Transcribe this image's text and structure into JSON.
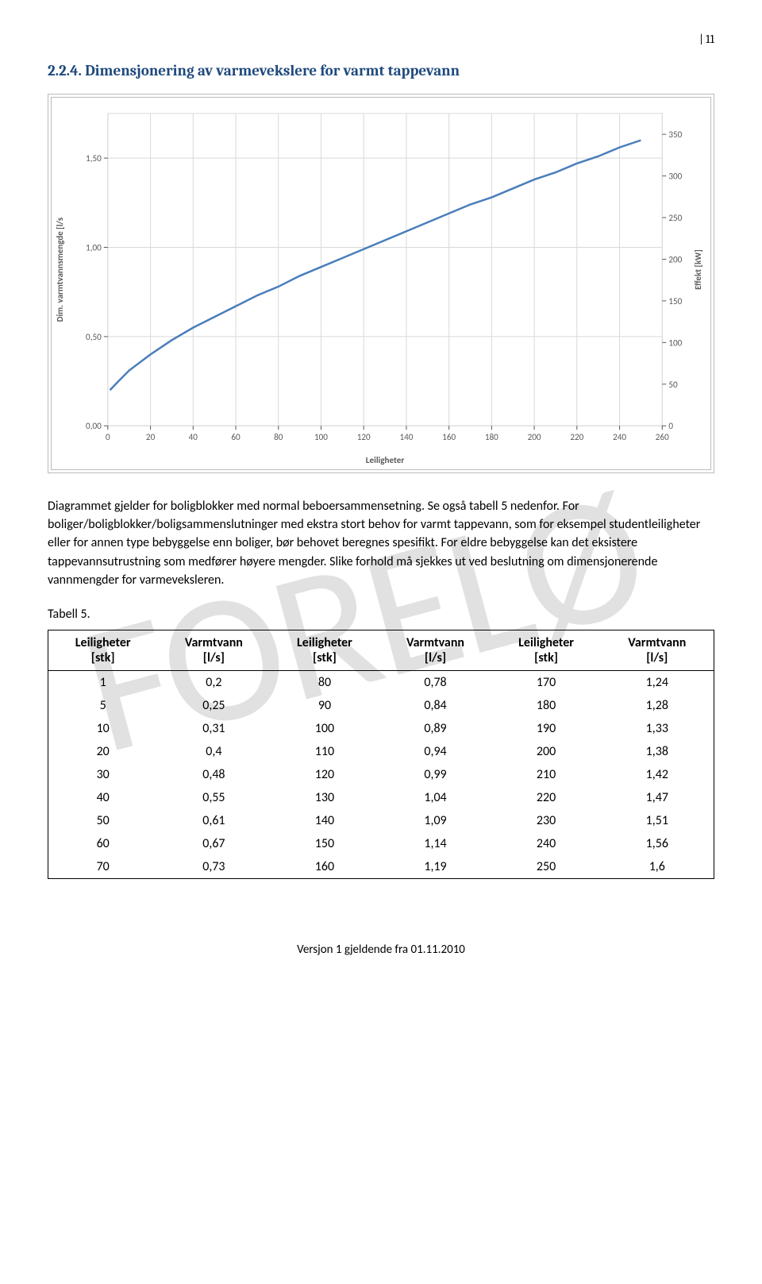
{
  "page_number": "| 11",
  "heading": "2.2.4. Dimensjonering av varmevekslere for varmt tappevann",
  "watermark": "FORELØ",
  "chart": {
    "type": "line",
    "x_axis_label": "Leiligheter",
    "y_left_label": "Dim. varmtvannsmengde [l/s",
    "y_right_label": "Effekt [kW]",
    "line_color": "#4a7ebb",
    "line_width": 2.5,
    "grid_color": "#d9d9d9",
    "background": "#ffffff",
    "tick_fontsize": 11,
    "tick_color": "#595959",
    "label_fontsize": 11,
    "x_ticks": [
      0,
      20,
      40,
      60,
      80,
      100,
      120,
      140,
      160,
      180,
      200,
      220,
      240,
      260
    ],
    "y_left_ticks": [
      "0,00",
      "0,50",
      "1,00",
      "1,50"
    ],
    "y_left_values": [
      0,
      0.5,
      1.0,
      1.5
    ],
    "y_right_ticks": [
      0,
      50,
      100,
      150,
      200,
      250,
      300,
      350
    ],
    "xlim": [
      0,
      260
    ],
    "ylim_left": [
      0,
      1.75
    ],
    "ylim_right": [
      0,
      375
    ],
    "data": [
      [
        1,
        0.2
      ],
      [
        5,
        0.25
      ],
      [
        10,
        0.31
      ],
      [
        20,
        0.4
      ],
      [
        30,
        0.48
      ],
      [
        40,
        0.55
      ],
      [
        50,
        0.61
      ],
      [
        60,
        0.67
      ],
      [
        70,
        0.73
      ],
      [
        80,
        0.78
      ],
      [
        90,
        0.84
      ],
      [
        100,
        0.89
      ],
      [
        110,
        0.94
      ],
      [
        120,
        0.99
      ],
      [
        130,
        1.04
      ],
      [
        140,
        1.09
      ],
      [
        150,
        1.14
      ],
      [
        160,
        1.19
      ],
      [
        170,
        1.24
      ],
      [
        180,
        1.28
      ],
      [
        190,
        1.33
      ],
      [
        200,
        1.38
      ],
      [
        210,
        1.42
      ],
      [
        220,
        1.47
      ],
      [
        230,
        1.51
      ],
      [
        240,
        1.56
      ],
      [
        250,
        1.6
      ]
    ]
  },
  "para1": "Diagrammet gjelder for boligblokker med normal beboersammensetning. Se også tabell 5 nedenfor. For boliger/boligblokker/boligsammenslutninger med ekstra stort behov for varmt tappevann, som for eksempel studentleiligheter eller for annen type bebyggelse enn boliger, bør behovet beregnes spesifikt. For eldre bebyggelse kan det eksistere tappevannsutrustning som medfører høyere mengder. Slike forhold må sjekkes ut ved beslutning om dimensjonerende vannmengder for varmeveksleren.",
  "table_caption": "Tabell 5.",
  "table": {
    "headers": [
      [
        "Leiligheter",
        "[stk]"
      ],
      [
        "Varmtvann",
        "[l/s]"
      ],
      [
        "Leiligheter",
        "[stk]"
      ],
      [
        "Varmtvann",
        "[l/s]"
      ],
      [
        "Leiligheter",
        "[stk]"
      ],
      [
        "Varmtvann",
        "[l/s]"
      ]
    ],
    "rows": [
      [
        "1",
        "0,2",
        "80",
        "0,78",
        "170",
        "1,24"
      ],
      [
        "5",
        "0,25",
        "90",
        "0,84",
        "180",
        "1,28"
      ],
      [
        "10",
        "0,31",
        "100",
        "0,89",
        "190",
        "1,33"
      ],
      [
        "20",
        "0,4",
        "110",
        "0,94",
        "200",
        "1,38"
      ],
      [
        "30",
        "0,48",
        "120",
        "0,99",
        "210",
        "1,42"
      ],
      [
        "40",
        "0,55",
        "130",
        "1,04",
        "220",
        "1,47"
      ],
      [
        "50",
        "0,61",
        "140",
        "1,09",
        "230",
        "1,51"
      ],
      [
        "60",
        "0,67",
        "150",
        "1,14",
        "240",
        "1,56"
      ],
      [
        "70",
        "0,73",
        "160",
        "1,19",
        "250",
        "1,6"
      ]
    ]
  },
  "footer": "Versjon 1 gjeldende fra 01.11.2010"
}
